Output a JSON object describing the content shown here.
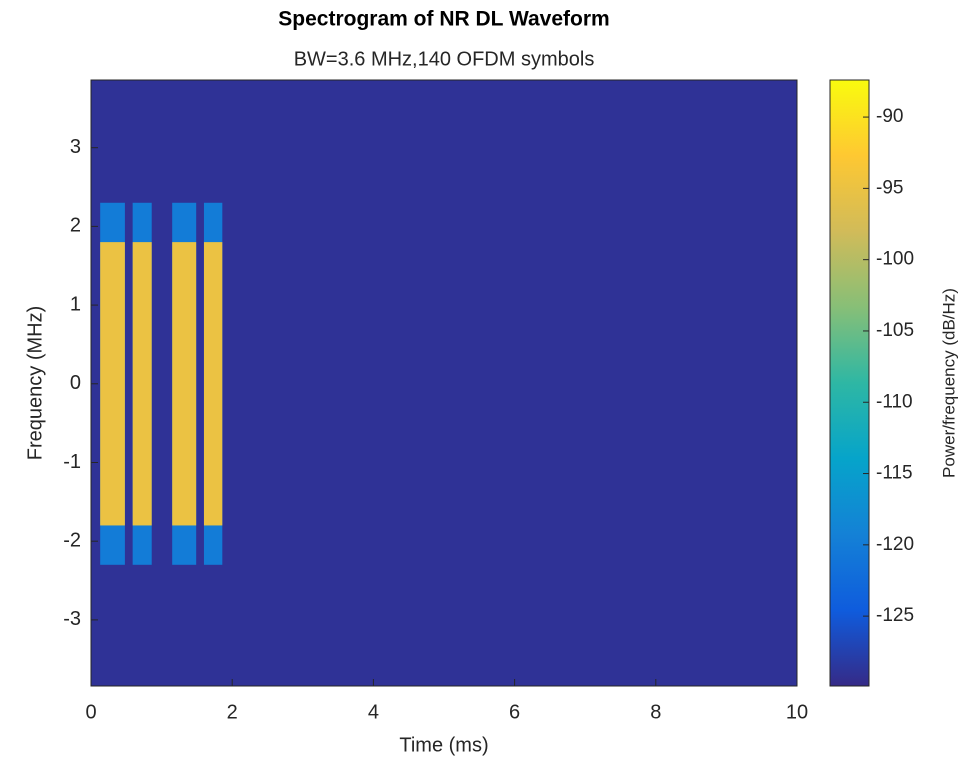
{
  "chart_data": {
    "type": "spectrogram",
    "title": "Spectrogram of NR DL Waveform",
    "subtitle": "BW=3.6 MHz,140 OFDM symbols",
    "xlabel": "Time (ms)",
    "ylabel": "Frequency (MHz)",
    "colorbar_label": "Power/frequency (dB/Hz)",
    "xlim": [
      0,
      10
    ],
    "xticks": [
      0,
      2,
      4,
      6,
      8,
      10
    ],
    "ylim": [
      -3.84,
      3.86
    ],
    "yticks": [
      -3,
      -2,
      -1,
      0,
      1,
      2,
      3
    ],
    "clim": [
      -129.9,
      -87.4
    ],
    "cticks": [
      -125,
      -120,
      -115,
      -110,
      -105,
      -100,
      -95,
      -90
    ],
    "colormap": [
      "#352a87",
      "#0f5cdd",
      "#1481d6",
      "#06a4ca",
      "#2eb7a4",
      "#87bf77",
      "#d1bb59",
      "#fec832",
      "#f9fb0e"
    ],
    "noise_floor": -129,
    "occupied_band": [
      -1.8,
      1.8
    ],
    "skirt_band": [
      -2.3,
      2.3
    ],
    "skirt_power": -120,
    "bursts": [
      {
        "start": 0.13,
        "end": 0.48,
        "power": -95
      },
      {
        "start": 0.59,
        "end": 0.86,
        "power": -95
      },
      {
        "start": 1.15,
        "end": 1.49,
        "power": -95
      },
      {
        "start": 1.6,
        "end": 1.86,
        "power": -95
      }
    ]
  }
}
